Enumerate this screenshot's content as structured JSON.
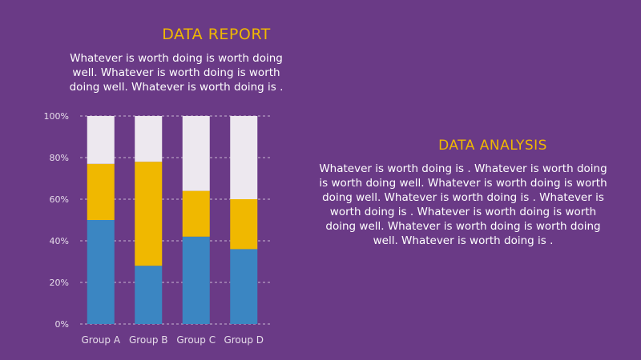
{
  "report": {
    "title": "DATA REPORT",
    "body": "Whatever is worth doing is worth doing well. Whatever is worth doing is worth doing well. Whatever is worth doing is ."
  },
  "analysis": {
    "title": "DATA ANALYSIS",
    "body": "Whatever is worth doing is . Whatever is worth doing is worth doing well. Whatever is worth doing is worth doing well. Whatever is worth doing is . Whatever is worth doing is . Whatever is worth doing is worth doing well. Whatever is worth doing is worth doing well. Whatever is worth doing is ."
  },
  "chart_data": {
    "type": "bar",
    "stacked": true,
    "categories": [
      "Group A",
      "Group B",
      "Group C",
      "Group D"
    ],
    "series": [
      {
        "color": "#3b86c2",
        "values": [
          50,
          28,
          42,
          36
        ]
      },
      {
        "color": "#f0b800",
        "values": [
          27,
          50,
          22,
          24
        ]
      },
      {
        "color": "#ede8ef",
        "values": [
          23,
          22,
          36,
          40
        ]
      }
    ],
    "ylim": [
      0,
      100
    ],
    "yticks": [
      "0%",
      "20%",
      "40%",
      "60%",
      "80%",
      "100%"
    ],
    "grid": true
  }
}
